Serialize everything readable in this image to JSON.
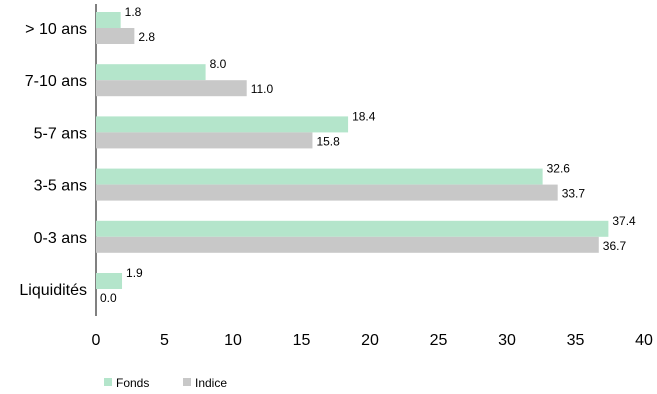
{
  "chart_data": {
    "type": "bar",
    "orientation": "horizontal",
    "categories": [
      "> 10 ans",
      "7-10 ans",
      "5-7 ans",
      "3-5 ans",
      "0-3 ans",
      "Liquidités"
    ],
    "series": [
      {
        "name": "Fonds",
        "color": "#b4e5cb",
        "values": [
          1.8,
          8.0,
          18.4,
          32.6,
          37.4,
          1.9
        ]
      },
      {
        "name": "Indice",
        "color": "#c8c8c8",
        "values": [
          2.8,
          11.0,
          15.8,
          33.7,
          36.7,
          0.0
        ]
      }
    ],
    "value_labels": {
      "Fonds": [
        "1.8",
        "8.0",
        "18.4",
        "32.6",
        "37.4",
        "1.9"
      ],
      "Indice": [
        "2.8",
        "11.0",
        "15.8",
        "33.7",
        "36.7",
        "0.0"
      ]
    },
    "x_ticks": [
      "0",
      "5",
      "10",
      "15",
      "20",
      "25",
      "30",
      "35",
      "40"
    ],
    "xlim": [
      0,
      40
    ],
    "title": "",
    "xlabel": "",
    "ylabel": "",
    "grid": false,
    "legend_position": "bottom-left"
  }
}
